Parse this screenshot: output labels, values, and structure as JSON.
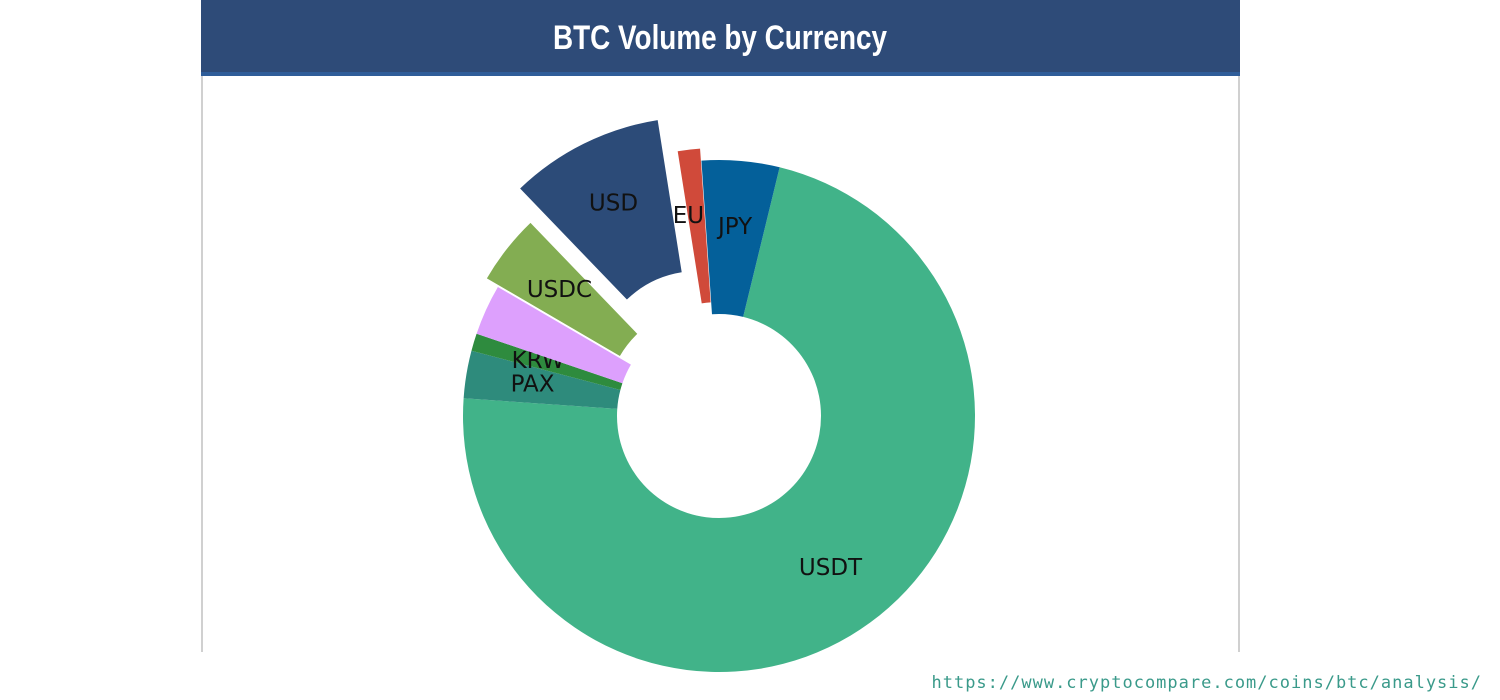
{
  "chart_data": {
    "type": "pie",
    "title": "BTC Volume by Currency",
    "categories": [
      "USDT",
      "PAX",
      "KRW",
      null,
      "USDC",
      "USD",
      "EUR",
      "JPY"
    ],
    "values": [
      72.3,
      3,
      1.1,
      3.2,
      4.4,
      9.7,
      1.4,
      4.9
    ],
    "colors": [
      "#41b389",
      "#2e8b7c",
      "#2e8b3e",
      "#dda0fd",
      "#83ad52",
      "#2c4b78",
      "#d04a3a",
      "#04609a"
    ],
    "donut": true
  },
  "source_url": "https://www.cryptocompare.com/coins/btc/analysis/"
}
